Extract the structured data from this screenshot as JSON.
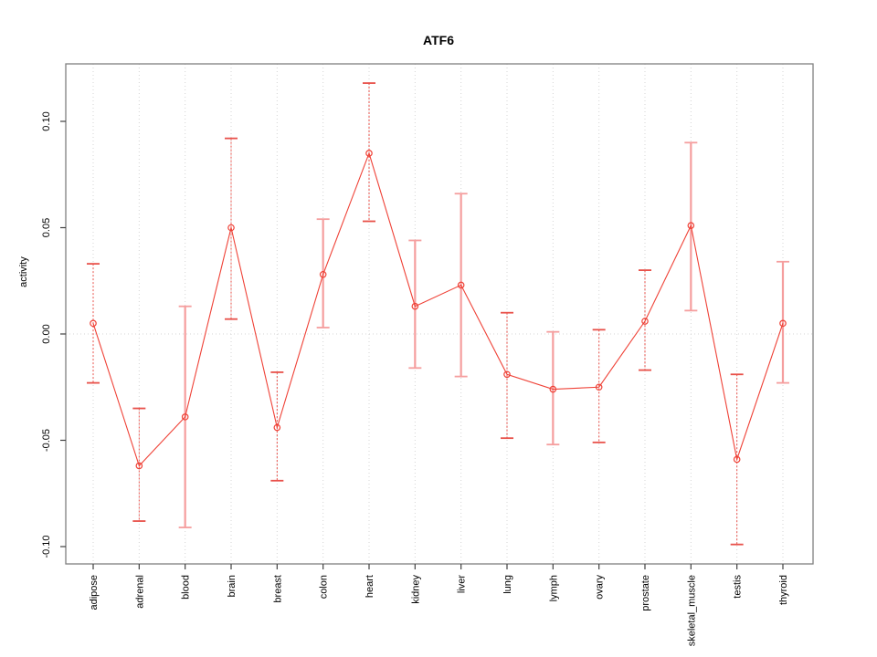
{
  "title": "ATF6",
  "ylabel": "activity",
  "colors": {
    "line": "#ef4136",
    "point": "#ef4136",
    "bar_dashed": "#e8514a",
    "bar_solid": "#f59e9e",
    "grid": "#d4d4d4",
    "axis_box": "#808080",
    "tick": "#404040",
    "text": "#000000",
    "background": "#ffffff"
  },
  "chart_data": {
    "type": "line",
    "title": "ATF6",
    "xlabel": "",
    "ylabel": "activity",
    "ylim": [
      -0.108,
      0.127
    ],
    "yticks": [
      -0.1,
      -0.05,
      0.0,
      0.05,
      0.1
    ],
    "ytick_labels": [
      "-0.10",
      "-0.05",
      "0.00",
      "0.05",
      "0.10"
    ],
    "grid": "dotted vertical line per category; dotted horizontal line at y=0",
    "legend_position": "none",
    "marker": "open-circle",
    "categories": [
      "adipose",
      "adrenal",
      "blood",
      "brain",
      "breast",
      "colon",
      "heart",
      "kidney",
      "liver",
      "lung",
      "lymph",
      "ovary",
      "prostate",
      "skeletal_muscle",
      "testis",
      "thyroid"
    ],
    "series": [
      {
        "name": "activity",
        "values": [
          0.005,
          -0.062,
          -0.039,
          0.05,
          -0.044,
          0.028,
          0.085,
          0.013,
          0.023,
          -0.019,
          -0.026,
          -0.025,
          0.006,
          0.051,
          -0.059,
          0.005
        ]
      }
    ],
    "error_lower": [
      -0.023,
      -0.088,
      -0.091,
      0.007,
      -0.069,
      0.003,
      0.053,
      -0.016,
      -0.02,
      -0.049,
      -0.052,
      -0.051,
      -0.017,
      0.011,
      -0.099,
      -0.023
    ],
    "error_upper": [
      0.033,
      -0.035,
      0.013,
      0.092,
      -0.018,
      0.054,
      0.118,
      0.044,
      0.066,
      0.01,
      0.001,
      0.002,
      0.03,
      0.09,
      -0.019,
      0.034
    ],
    "error_bar_styles": [
      "dashed",
      "dashed",
      "solid",
      "dashed",
      "dashed",
      "solid",
      "dashed",
      "solid",
      "solid",
      "dashed",
      "solid",
      "dashed",
      "dashed",
      "solid",
      "dashed",
      "solid"
    ]
  }
}
